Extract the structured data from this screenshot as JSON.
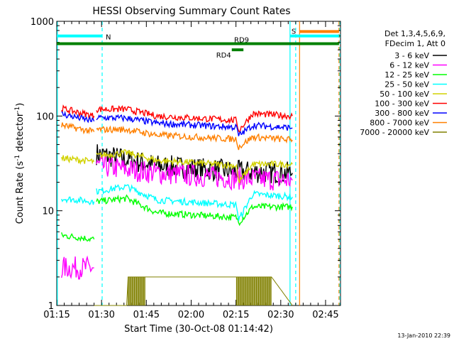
{
  "chart_data": {
    "type": "line",
    "title": "HESSI Observing Summary Count Rates",
    "xlabel": "Start Time (30-Oct-08 01:14:42)",
    "ylabel_main": "Count Rate (s",
    "ylabel_sup1": "-1",
    "ylabel_mid": " detector",
    "ylabel_sup2": "-1",
    "ylabel_end": ")",
    "yscale": "log",
    "ylim": [
      1,
      1000
    ],
    "xlim_minutes": [
      0,
      95
    ],
    "x_tick_labels": [
      "01:15",
      "01:30",
      "01:45",
      "02:00",
      "02:15",
      "02:30",
      "02:45"
    ],
    "x_tick_minutes": [
      0,
      15,
      30,
      45,
      60,
      75,
      90
    ],
    "y_tick_labels": [
      "1",
      "10",
      "100",
      "1000"
    ],
    "y_tick_values": [
      1,
      10,
      100,
      1000
    ],
    "timestamp": "13-Jan-2010 22:39",
    "legend_header": [
      "Det 1,3,4,5,6,9,",
      "FDecim 1, Att 0"
    ],
    "legend_position": "right",
    "series": [
      {
        "name": "3 - 6 keV",
        "color": "#000000",
        "segments": [
          {
            "x": [
              0,
              12.5
            ],
            "y": [
              null,
              null
            ]
          },
          {
            "x": [
              13.3,
              33.6,
              60.2,
              78.9
            ],
            "y": [
              40,
              30,
              26,
              25
            ]
          }
        ]
      },
      {
        "name": "6 - 12 keV",
        "color": "#ff00ff",
        "segments": [
          {
            "x": [
              1.6,
              12.5
            ],
            "y": [
              2.5,
              2.5
            ]
          },
          {
            "x": [
              13.3,
              33.6,
              60.2,
              78.9
            ],
            "y": [
              30,
              25,
              22,
              21
            ]
          }
        ]
      },
      {
        "name": "12 - 25 keV",
        "color": "#00ff00",
        "segments": [
          {
            "x": [
              1.6,
              12.5
            ],
            "y": [
              5.5,
              5.0
            ]
          },
          {
            "x": [
              13.3,
              23.4,
              33.6,
              60.2,
              60.9,
              65.6,
              78.9
            ],
            "y": [
              12.5,
              13.5,
              9.5,
              8.5,
              7.5,
              11,
              11
            ]
          }
        ]
      },
      {
        "name": "25 - 50 keV",
        "color": "#00ffff",
        "segments": [
          {
            "x": [
              1.6,
              12.5
            ],
            "y": [
              13.5,
              12.5
            ]
          },
          {
            "x": [
              13.3,
              23.4,
              33.6,
              60.2,
              60.9,
              65.6,
              78.9
            ],
            "y": [
              16,
              18,
              13,
              11.5,
              8,
              15,
              14
            ]
          }
        ]
      },
      {
        "name": "50 - 100 keV",
        "color": "#d2d200",
        "segments": [
          {
            "x": [
              1.6,
              12.5
            ],
            "y": [
              36,
              33
            ]
          },
          {
            "x": [
              13.3,
              23.4,
              33.6,
              60.2,
              60.9,
              65.6,
              78.9
            ],
            "y": [
              38,
              41,
              34,
              30,
              20,
              31,
              31
            ]
          }
        ]
      },
      {
        "name": "100 - 300 keV",
        "color": "#ff0000",
        "segments": [
          {
            "x": [
              1.6,
              12.5
            ],
            "y": [
              120,
              100
            ]
          },
          {
            "x": [
              13.3,
              23.4,
              33.6,
              60.2,
              60.9,
              65.6,
              78.9
            ],
            "y": [
              118,
              118,
              100,
              90,
              70,
              106,
              100
            ]
          }
        ]
      },
      {
        "name": "300 - 800 keV",
        "color": "#0000ff",
        "segments": [
          {
            "x": [
              1.6,
              12.5
            ],
            "y": [
              105,
              88
            ]
          },
          {
            "x": [
              13.3,
              23.4,
              33.6,
              60.2,
              60.9,
              65.6,
              78.9
            ],
            "y": [
              96,
              95,
              84,
              76,
              62,
              80,
              75
            ]
          }
        ]
      },
      {
        "name": "800 - 7000 keV",
        "color": "#ff8000",
        "segments": [
          {
            "x": [
              1.6,
              12.5
            ],
            "y": [
              80,
              68
            ]
          },
          {
            "x": [
              13.3,
              23.4,
              33.6,
              60.2,
              60.9,
              65.6,
              78.9
            ],
            "y": [
              72,
              72,
              63,
              57,
              47,
              60,
              56
            ]
          }
        ]
      },
      {
        "name": "7000 - 20000 keV",
        "color": "#808000",
        "segments": [
          {
            "x": [
              12.5,
              23.4,
              23.9,
              29.7,
              60.2,
              71.9,
              78.9
            ],
            "y": [
              1,
              1,
              2,
              2,
              2,
              2,
              1
            ]
          }
        ]
      }
    ],
    "flags": [
      {
        "label": "N",
        "color": "#00ffff",
        "x": [
          0,
          15.2
        ],
        "y": 700
      },
      {
        "label": "S",
        "color": "#00ffff",
        "x": [
          78.1,
          94.5
        ],
        "y": 700
      },
      {
        "label": "",
        "color": "#ff8000",
        "x": [
          81.3,
          94.5
        ],
        "y": 780
      },
      {
        "label": "RD9",
        "color": "#008000",
        "x": [
          0,
          94.5
        ],
        "y": 580
      },
      {
        "label": "RD4",
        "color": "#008000",
        "x": [
          58.6,
          62.5
        ],
        "y": 500
      }
    ]
  }
}
